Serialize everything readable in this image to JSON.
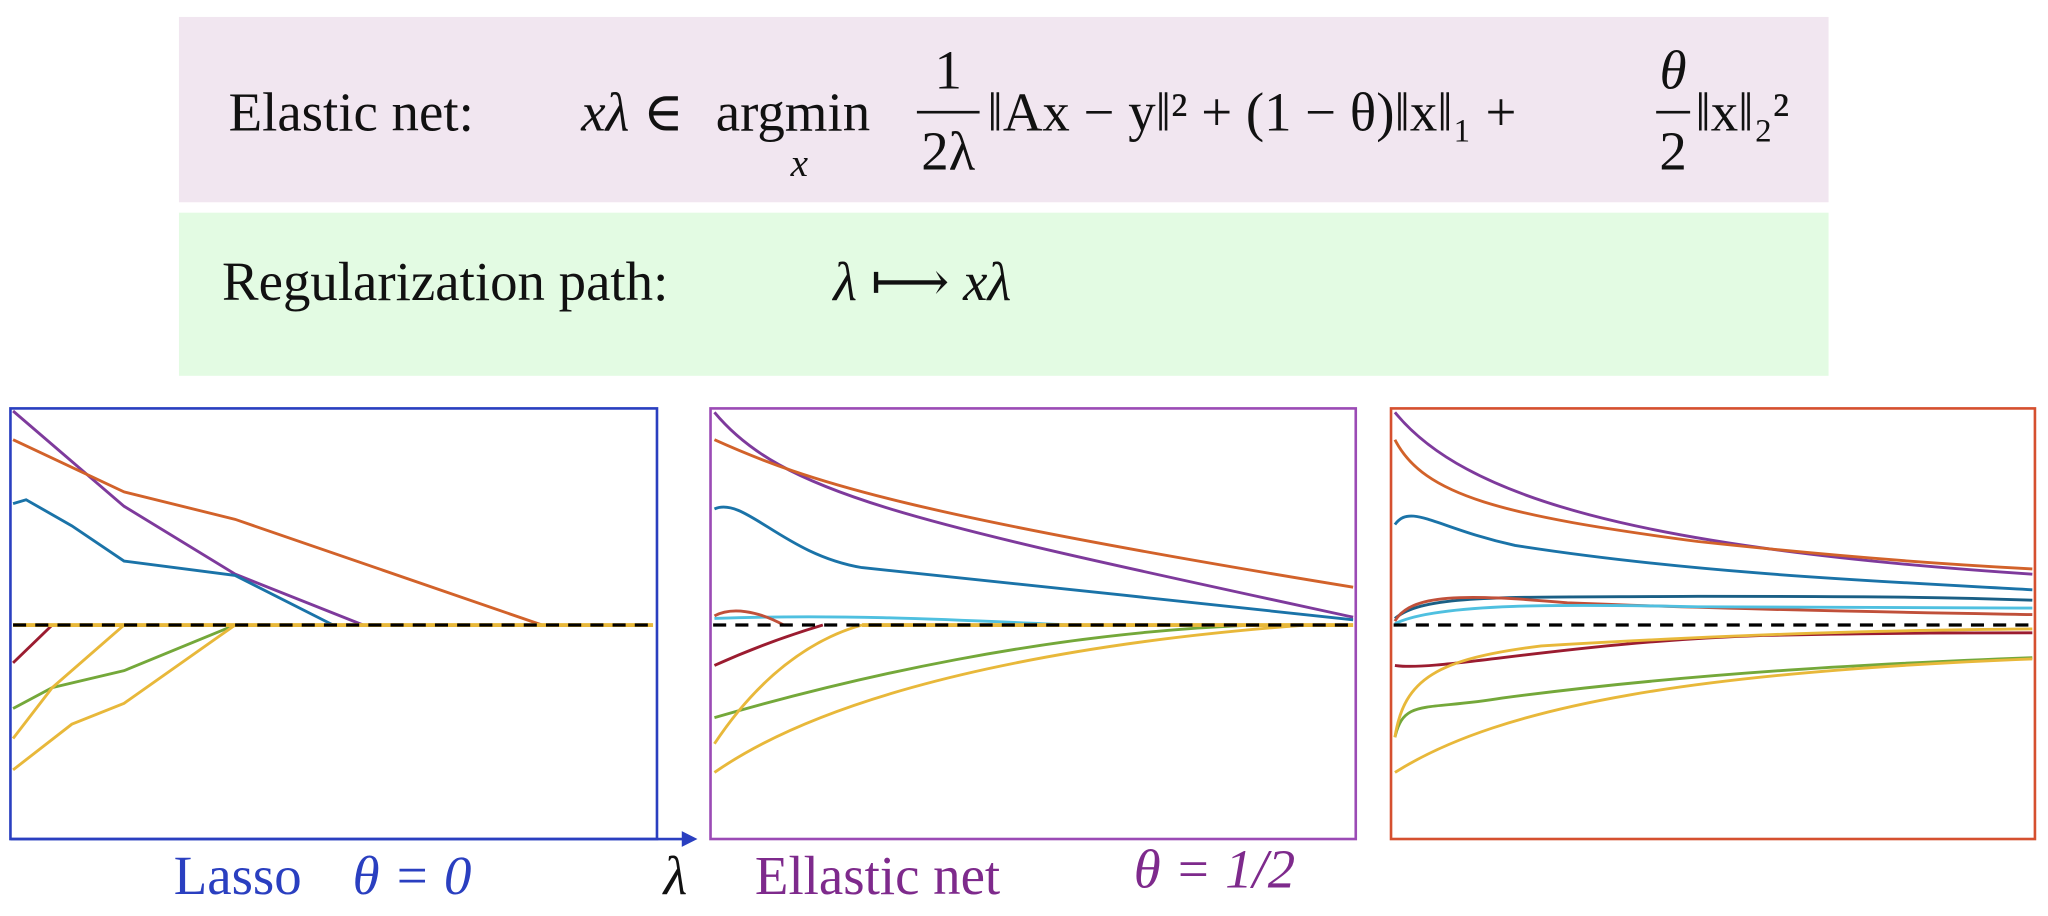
{
  "top_box": {
    "label": "Elastic net:",
    "formula": {
      "lhs": "xλ ∈",
      "argmin": "argmin",
      "argmin_sub": "x",
      "frac1_num": "1",
      "frac1_den": "2λ",
      "term1": "‖Ax − y‖² + (1 − θ)‖x‖₁ +",
      "frac2_num": "θ",
      "frac2_den": "2",
      "term2": "‖x‖₂²"
    }
  },
  "middle_box": {
    "label": "Regularization path:",
    "formula": "λ ⟼ xλ"
  },
  "captions": {
    "lasso": "Lasso",
    "lasso_theta": "θ = 0",
    "axis": "λ",
    "elastic": "Ellastic net",
    "elastic_theta": "θ = 1/2"
  }
}
